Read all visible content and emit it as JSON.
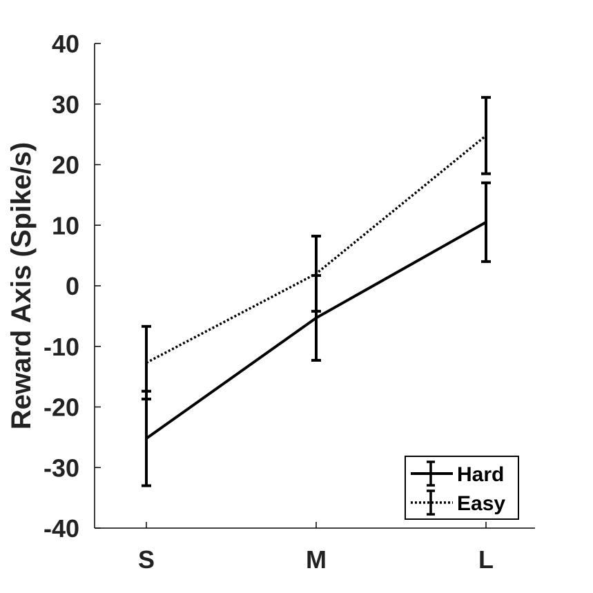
{
  "chart_data": {
    "type": "line",
    "categories": [
      "S",
      "M",
      "L"
    ],
    "ylabel": "Reward Axis (Spike/s)",
    "xlabel": "",
    "ylim": [
      -40,
      40
    ],
    "yticks": [
      40,
      30,
      20,
      10,
      0,
      -10,
      -20,
      -30,
      -40
    ],
    "grid": false,
    "legend_position": "bottom-right",
    "series": [
      {
        "name": "Hard",
        "style": "solid",
        "color": "#000000",
        "values": [
          -25.2,
          -5.3,
          10.5
        ],
        "error": [
          7.8,
          7.0,
          6.5
        ]
      },
      {
        "name": "Easy",
        "style": "dotted",
        "color": "#000000",
        "values": [
          -12.7,
          2.0,
          24.8
        ],
        "error": [
          6.0,
          6.2,
          6.3
        ]
      }
    ]
  }
}
